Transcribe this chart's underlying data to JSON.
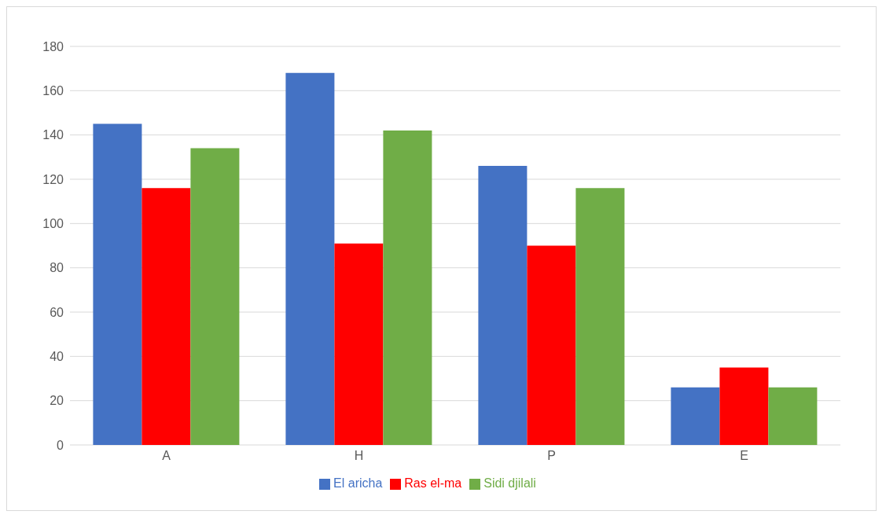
{
  "chart_data": {
    "type": "bar",
    "categories": [
      "A",
      "H",
      "P",
      "E"
    ],
    "series": [
      {
        "name": "El aricha",
        "color": "#4472c4",
        "values": [
          145,
          168,
          126,
          26
        ]
      },
      {
        "name": "Ras el-ma",
        "color": "#ff0000",
        "values": [
          116,
          91,
          90,
          35
        ]
      },
      {
        "name": "Sidi djilali",
        "color": "#70ad47",
        "values": [
          134,
          142,
          116,
          26
        ]
      }
    ],
    "ylim": [
      0,
      180
    ],
    "yticks": [
      0,
      20,
      40,
      60,
      80,
      100,
      120,
      140,
      160,
      180
    ],
    "grid": "y",
    "legend": "bottom"
  }
}
